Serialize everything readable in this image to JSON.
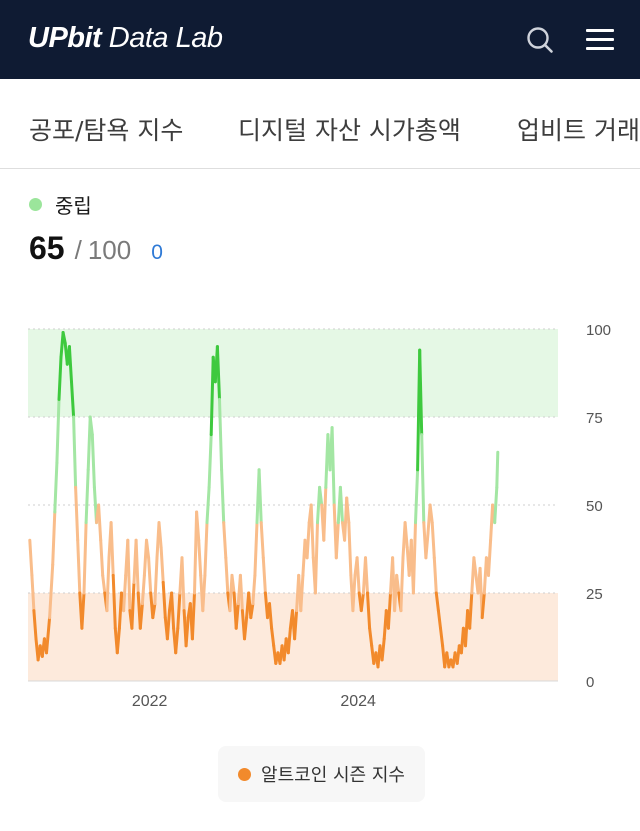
{
  "header": {
    "brand": "UPbit",
    "product": "Data Lab"
  },
  "tabs": [
    {
      "label": "공포/탐욕 지수"
    },
    {
      "label": "디지털 자산 시가총액"
    },
    {
      "label": "업비트 거래"
    }
  ],
  "indicator": {
    "status_label": "중립",
    "status_color": "#9be59b",
    "value": "65",
    "separator": "/",
    "max": "100",
    "change": "0",
    "change_color": "#2f7ad6"
  },
  "colors": {
    "high_zone": "#e5f8e5",
    "low_zone": "#fdeadc",
    "green_strong": "#3ec93e",
    "green_light": "#a3e6a3",
    "orange_light": "#f9bd8b",
    "orange_strong": "#f28a2c"
  },
  "chart_data": {
    "type": "line",
    "title": "",
    "xlabel": "",
    "ylabel": "",
    "ylim": [
      0,
      100
    ],
    "yticks": [
      "100",
      "75",
      "50",
      "25",
      "0"
    ],
    "xticks": [
      "2022",
      "2024"
    ],
    "x_range": [
      2020.833,
      2025.917
    ],
    "zones": [
      {
        "from": 75,
        "to": 100,
        "color": "#e5f8e5"
      },
      {
        "from": 0,
        "to": 25,
        "color": "#fdeadc"
      }
    ],
    "grid": true,
    "legend_position": "bottom",
    "series": [
      {
        "name": "알트코인 시즌 지수",
        "color": "#f28a2c",
        "points": [
          [
            2020.85,
            40
          ],
          [
            2020.87,
            30
          ],
          [
            2020.89,
            20
          ],
          [
            2020.91,
            12
          ],
          [
            2020.93,
            6
          ],
          [
            2020.95,
            10
          ],
          [
            2020.97,
            7
          ],
          [
            2020.99,
            12
          ],
          [
            2021.01,
            8
          ],
          [
            2021.04,
            18
          ],
          [
            2021.07,
            33
          ],
          [
            2021.09,
            48
          ],
          [
            2021.11,
            62
          ],
          [
            2021.13,
            80
          ],
          [
            2021.15,
            92
          ],
          [
            2021.17,
            99
          ],
          [
            2021.19,
            96
          ],
          [
            2021.21,
            90
          ],
          [
            2021.23,
            95
          ],
          [
            2021.25,
            85
          ],
          [
            2021.27,
            75
          ],
          [
            2021.29,
            55
          ],
          [
            2021.31,
            40
          ],
          [
            2021.33,
            25
          ],
          [
            2021.35,
            15
          ],
          [
            2021.37,
            25
          ],
          [
            2021.39,
            45
          ],
          [
            2021.41,
            60
          ],
          [
            2021.43,
            75
          ],
          [
            2021.45,
            70
          ],
          [
            2021.47,
            55
          ],
          [
            2021.49,
            45
          ],
          [
            2021.51,
            50
          ],
          [
            2021.53,
            40
          ],
          [
            2021.55,
            30
          ],
          [
            2021.57,
            25
          ],
          [
            2021.59,
            20
          ],
          [
            2021.61,
            35
          ],
          [
            2021.63,
            45
          ],
          [
            2021.65,
            30
          ],
          [
            2021.67,
            15
          ],
          [
            2021.69,
            8
          ],
          [
            2021.71,
            15
          ],
          [
            2021.73,
            25
          ],
          [
            2021.75,
            20
          ],
          [
            2021.77,
            30
          ],
          [
            2021.79,
            40
          ],
          [
            2021.81,
            20
          ],
          [
            2021.83,
            15
          ],
          [
            2021.85,
            28
          ],
          [
            2021.87,
            40
          ],
          [
            2021.89,
            25
          ],
          [
            2021.91,
            15
          ],
          [
            2021.93,
            22
          ],
          [
            2021.95,
            30
          ],
          [
            2021.97,
            40
          ],
          [
            2021.99,
            35
          ],
          [
            2022.01,
            25
          ],
          [
            2022.03,
            18
          ],
          [
            2022.05,
            22
          ],
          [
            2022.07,
            35
          ],
          [
            2022.09,
            45
          ],
          [
            2022.11,
            38
          ],
          [
            2022.13,
            28
          ],
          [
            2022.15,
            18
          ],
          [
            2022.17,
            12
          ],
          [
            2022.19,
            20
          ],
          [
            2022.21,
            25
          ],
          [
            2022.23,
            15
          ],
          [
            2022.25,
            8
          ],
          [
            2022.27,
            15
          ],
          [
            2022.29,
            25
          ],
          [
            2022.31,
            35
          ],
          [
            2022.33,
            20
          ],
          [
            2022.35,
            10
          ],
          [
            2022.37,
            18
          ],
          [
            2022.39,
            22
          ],
          [
            2022.41,
            12
          ],
          [
            2022.43,
            25
          ],
          [
            2022.45,
            48
          ],
          [
            2022.47,
            40
          ],
          [
            2022.49,
            30
          ],
          [
            2022.51,
            20
          ],
          [
            2022.53,
            30
          ],
          [
            2022.55,
            45
          ],
          [
            2022.57,
            55
          ],
          [
            2022.59,
            70
          ],
          [
            2022.61,
            92
          ],
          [
            2022.63,
            85
          ],
          [
            2022.65,
            95
          ],
          [
            2022.67,
            80
          ],
          [
            2022.69,
            60
          ],
          [
            2022.71,
            45
          ],
          [
            2022.73,
            35
          ],
          [
            2022.75,
            25
          ],
          [
            2022.77,
            20
          ],
          [
            2022.79,
            30
          ],
          [
            2022.81,
            25
          ],
          [
            2022.83,
            15
          ],
          [
            2022.85,
            22
          ],
          [
            2022.87,
            30
          ],
          [
            2022.89,
            20
          ],
          [
            2022.91,
            12
          ],
          [
            2022.93,
            18
          ],
          [
            2022.95,
            25
          ],
          [
            2022.97,
            18
          ],
          [
            2022.99,
            22
          ],
          [
            2023.01,
            30
          ],
          [
            2023.03,
            45
          ],
          [
            2023.05,
            60
          ],
          [
            2023.07,
            45
          ],
          [
            2023.09,
            35
          ],
          [
            2023.11,
            25
          ],
          [
            2023.13,
            18
          ],
          [
            2023.15,
            22
          ],
          [
            2023.17,
            15
          ],
          [
            2023.19,
            10
          ],
          [
            2023.21,
            5
          ],
          [
            2023.23,
            8
          ],
          [
            2023.25,
            5
          ],
          [
            2023.27,
            10
          ],
          [
            2023.29,
            6
          ],
          [
            2023.31,
            12
          ],
          [
            2023.33,
            8
          ],
          [
            2023.35,
            15
          ],
          [
            2023.37,
            20
          ],
          [
            2023.39,
            12
          ],
          [
            2023.41,
            20
          ],
          [
            2023.43,
            30
          ],
          [
            2023.45,
            20
          ],
          [
            2023.47,
            30
          ],
          [
            2023.49,
            40
          ],
          [
            2023.51,
            35
          ],
          [
            2023.53,
            45
          ],
          [
            2023.55,
            50
          ],
          [
            2023.57,
            35
          ],
          [
            2023.59,
            25
          ],
          [
            2023.61,
            45
          ],
          [
            2023.63,
            55
          ],
          [
            2023.65,
            50
          ],
          [
            2023.67,
            40
          ],
          [
            2023.69,
            55
          ],
          [
            2023.71,
            70
          ],
          [
            2023.73,
            60
          ],
          [
            2023.75,
            72
          ],
          [
            2023.77,
            50
          ],
          [
            2023.79,
            35
          ],
          [
            2023.81,
            45
          ],
          [
            2023.83,
            55
          ],
          [
            2023.85,
            45
          ],
          [
            2023.87,
            40
          ],
          [
            2023.89,
            52
          ],
          [
            2023.91,
            45
          ],
          [
            2023.93,
            30
          ],
          [
            2023.95,
            20
          ],
          [
            2023.97,
            30
          ],
          [
            2023.99,
            35
          ],
          [
            2024.01,
            25
          ],
          [
            2024.03,
            20
          ],
          [
            2024.05,
            25
          ],
          [
            2024.07,
            35
          ],
          [
            2024.09,
            25
          ],
          [
            2024.11,
            15
          ],
          [
            2024.13,
            10
          ],
          [
            2024.15,
            5
          ],
          [
            2024.17,
            8
          ],
          [
            2024.19,
            4
          ],
          [
            2024.21,
            10
          ],
          [
            2024.23,
            6
          ],
          [
            2024.25,
            12
          ],
          [
            2024.27,
            20
          ],
          [
            2024.29,
            15
          ],
          [
            2024.31,
            25
          ],
          [
            2024.33,
            35
          ],
          [
            2024.35,
            20
          ],
          [
            2024.37,
            30
          ],
          [
            2024.39,
            25
          ],
          [
            2024.41,
            20
          ],
          [
            2024.43,
            35
          ],
          [
            2024.45,
            45
          ],
          [
            2024.47,
            38
          ],
          [
            2024.49,
            30
          ],
          [
            2024.51,
            40
          ],
          [
            2024.53,
            25
          ],
          [
            2024.55,
            45
          ],
          [
            2024.57,
            60
          ],
          [
            2024.59,
            94
          ],
          [
            2024.61,
            70
          ],
          [
            2024.63,
            45
          ],
          [
            2024.65,
            35
          ],
          [
            2024.67,
            42
          ],
          [
            2024.69,
            50
          ],
          [
            2024.71,
            45
          ],
          [
            2024.73,
            35
          ],
          [
            2024.75,
            25
          ],
          [
            2024.77,
            20
          ],
          [
            2024.79,
            15
          ],
          [
            2024.81,
            10
          ],
          [
            2024.83,
            4
          ],
          [
            2024.85,
            8
          ],
          [
            2024.87,
            4
          ],
          [
            2024.89,
            6
          ],
          [
            2024.91,
            4
          ],
          [
            2024.93,
            8
          ],
          [
            2024.95,
            5
          ],
          [
            2024.97,
            10
          ],
          [
            2024.99,
            8
          ],
          [
            2025.01,
            15
          ],
          [
            2025.03,
            10
          ],
          [
            2025.05,
            20
          ],
          [
            2025.07,
            15
          ],
          [
            2025.09,
            25
          ],
          [
            2025.11,
            35
          ],
          [
            2025.13,
            30
          ],
          [
            2025.15,
            25
          ],
          [
            2025.17,
            32
          ],
          [
            2025.19,
            18
          ],
          [
            2025.21,
            25
          ],
          [
            2025.23,
            35
          ],
          [
            2025.25,
            30
          ],
          [
            2025.27,
            40
          ],
          [
            2025.29,
            50
          ],
          [
            2025.31,
            45
          ],
          [
            2025.33,
            55
          ],
          [
            2025.34,
            65
          ]
        ]
      }
    ]
  }
}
